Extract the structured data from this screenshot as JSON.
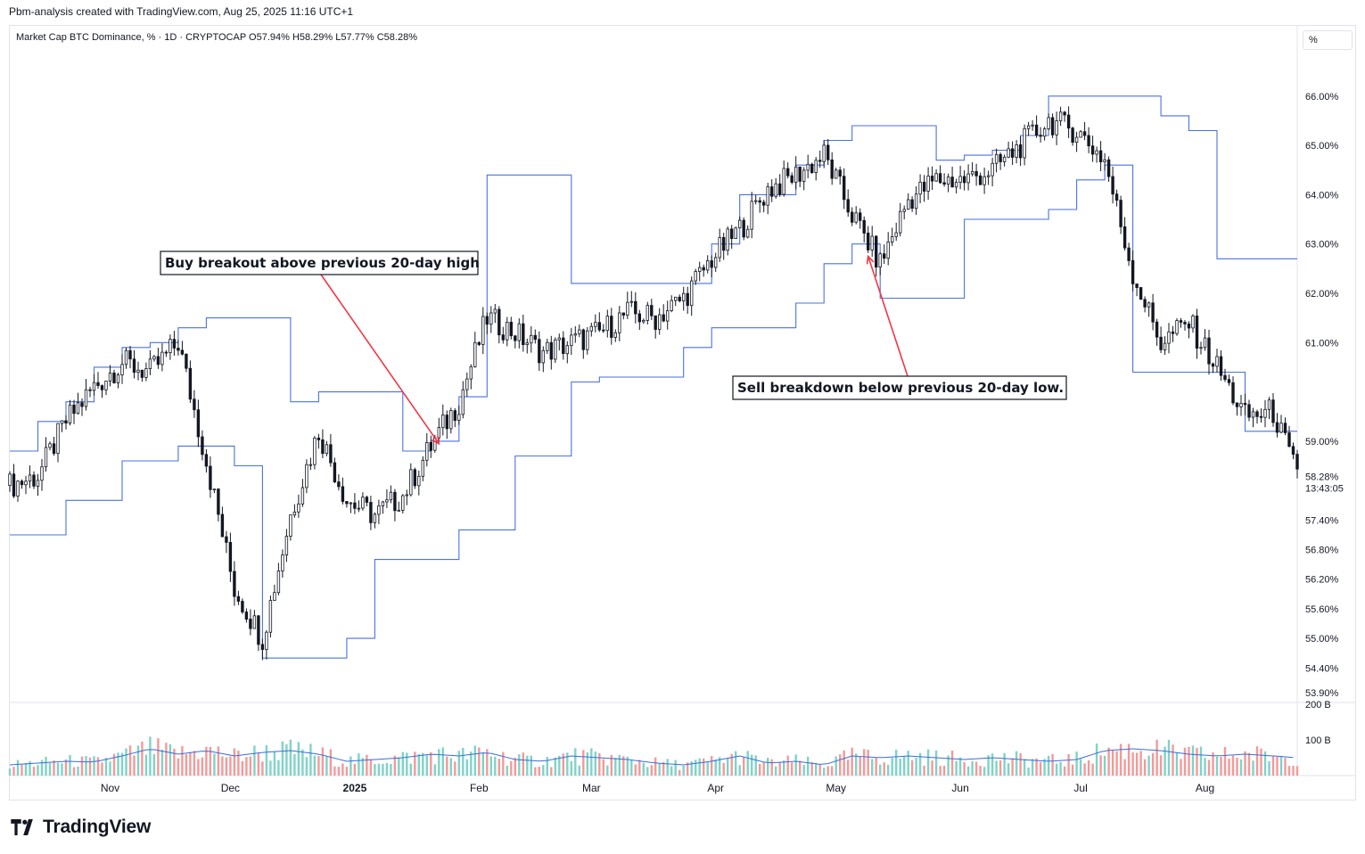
{
  "header": {
    "credit": "Pbm-analysis created with TradingView.com, Aug 25, 2025 11:16 UTC+1"
  },
  "legend": {
    "symbol": "Market Cap BTC Dominance, % · 1D · CRYPTOCAP",
    "ohlc": "O57.94% H58.29% L57.77% C58.28%"
  },
  "price_axis": {
    "unit_button": "%",
    "last_price_label": "58.28%",
    "countdown": "13:43:05"
  },
  "footer": {
    "brand": "TradingView"
  },
  "colors": {
    "channel": "#4a72e0",
    "candle": "#131722",
    "volume_up": "#7fd3c7",
    "volume_down": "#f29a9a",
    "volume_ma": "#3a6de0",
    "arrow": "#f23645"
  },
  "annotations": [
    {
      "text": "Buy breakout above previous 20-day high",
      "date": "2025-01-22",
      "value": 58.95
    },
    {
      "text": "Sell breakdown below previous 20-day low.",
      "date": "2025-05-09",
      "value": 62.75
    }
  ],
  "chart_data": {
    "type": "candlestick",
    "title": "Market Cap BTC Dominance, % · 1D · CRYPTOCAP",
    "y_unit": "%",
    "ylim": [
      53.7,
      66.9
    ],
    "y_ticks": [
      "66.00%",
      "65.00%",
      "64.00%",
      "63.00%",
      "62.00%",
      "61.00%",
      "59.00%",
      "57.40%",
      "56.80%",
      "56.20%",
      "55.60%",
      "55.00%",
      "54.40%",
      "53.90%"
    ],
    "x_ticks": [
      "Nov",
      "Dec",
      "2025",
      "Feb",
      "Mar",
      "Apr",
      "May",
      "Jun",
      "Jul",
      "Aug"
    ],
    "volume_ticks": [
      "200 B",
      "100 B"
    ],
    "volume_ylim": [
      0,
      200
    ],
    "indicator": "Donchian channel (20-day high / low)",
    "close_series": [
      [
        "2024-10-07",
        58.1
      ],
      [
        "2024-10-14",
        58.3
      ],
      [
        "2024-10-21",
        59.4
      ],
      [
        "2024-10-28",
        60.1
      ],
      [
        "2024-11-04",
        60.6
      ],
      [
        "2024-11-11",
        60.4
      ],
      [
        "2024-11-18",
        61.0
      ],
      [
        "2024-11-25",
        58.6
      ],
      [
        "2024-12-02",
        56.0
      ],
      [
        "2024-12-09",
        55.0
      ],
      [
        "2024-12-16",
        57.5
      ],
      [
        "2024-12-23",
        59.2
      ],
      [
        "2024-12-30",
        57.8
      ],
      [
        "2025-01-06",
        57.5
      ],
      [
        "2025-01-13",
        57.9
      ],
      [
        "2025-01-20",
        58.9
      ],
      [
        "2025-01-27",
        59.8
      ],
      [
        "2025-02-03",
        61.5
      ],
      [
        "2025-02-10",
        61.2
      ],
      [
        "2025-02-17",
        60.8
      ],
      [
        "2025-02-24",
        61.0
      ],
      [
        "2025-03-03",
        61.2
      ],
      [
        "2025-03-10",
        61.6
      ],
      [
        "2025-03-17",
        61.5
      ],
      [
        "2025-03-24",
        61.9
      ],
      [
        "2025-03-31",
        62.7
      ],
      [
        "2025-04-07",
        63.3
      ],
      [
        "2025-04-14",
        64.1
      ],
      [
        "2025-04-21",
        64.4
      ],
      [
        "2025-04-28",
        64.8
      ],
      [
        "2025-05-05",
        63.6
      ],
      [
        "2025-05-12",
        62.6
      ],
      [
        "2025-05-19",
        63.9
      ],
      [
        "2025-05-26",
        64.3
      ],
      [
        "2025-06-02",
        64.3
      ],
      [
        "2025-06-09",
        64.5
      ],
      [
        "2025-06-16",
        65.0
      ],
      [
        "2025-06-23",
        65.5
      ],
      [
        "2025-06-30",
        65.3
      ],
      [
        "2025-07-07",
        64.7
      ],
      [
        "2025-07-14",
        62.4
      ],
      [
        "2025-07-21",
        61.0
      ],
      [
        "2025-07-28",
        61.4
      ],
      [
        "2025-08-04",
        60.5
      ],
      [
        "2025-08-11",
        59.5
      ],
      [
        "2025-08-18",
        59.6
      ],
      [
        "2025-08-24",
        58.28
      ]
    ],
    "donchian_upper": [
      [
        "2024-10-07",
        58.8
      ],
      [
        "2024-10-14",
        59.4
      ],
      [
        "2024-10-21",
        59.8
      ],
      [
        "2024-10-28",
        60.5
      ],
      [
        "2024-11-04",
        60.9
      ],
      [
        "2024-11-11",
        61.0
      ],
      [
        "2024-11-18",
        61.3
      ],
      [
        "2024-11-25",
        61.5
      ],
      [
        "2024-12-02",
        61.5
      ],
      [
        "2024-12-09",
        61.5
      ],
      [
        "2024-12-16",
        59.8
      ],
      [
        "2024-12-23",
        60.0
      ],
      [
        "2024-12-30",
        60.0
      ],
      [
        "2025-01-06",
        60.0
      ],
      [
        "2025-01-13",
        58.8
      ],
      [
        "2025-01-20",
        59.0
      ],
      [
        "2025-01-27",
        59.9
      ],
      [
        "2025-02-03",
        64.4
      ],
      [
        "2025-02-10",
        64.4
      ],
      [
        "2025-02-17",
        64.4
      ],
      [
        "2025-02-24",
        62.2
      ],
      [
        "2025-03-03",
        62.2
      ],
      [
        "2025-03-10",
        62.2
      ],
      [
        "2025-03-17",
        62.2
      ],
      [
        "2025-03-24",
        62.2
      ],
      [
        "2025-03-31",
        63.0
      ],
      [
        "2025-04-07",
        64.0
      ],
      [
        "2025-04-14",
        64.0
      ],
      [
        "2025-04-21",
        64.6
      ],
      [
        "2025-04-28",
        65.1
      ],
      [
        "2025-05-05",
        65.4
      ],
      [
        "2025-05-12",
        65.4
      ],
      [
        "2025-05-19",
        65.4
      ],
      [
        "2025-05-26",
        64.7
      ],
      [
        "2025-06-02",
        64.8
      ],
      [
        "2025-06-09",
        64.9
      ],
      [
        "2025-06-16",
        65.2
      ],
      [
        "2025-06-23",
        66.0
      ],
      [
        "2025-06-30",
        66.0
      ],
      [
        "2025-07-07",
        66.0
      ],
      [
        "2025-07-14",
        66.0
      ],
      [
        "2025-07-21",
        65.6
      ],
      [
        "2025-07-28",
        65.3
      ],
      [
        "2025-08-04",
        62.7
      ],
      [
        "2025-08-11",
        62.7
      ],
      [
        "2025-08-18",
        62.7
      ],
      [
        "2025-08-24",
        62.7
      ]
    ],
    "donchian_lower": [
      [
        "2024-10-07",
        57.1
      ],
      [
        "2024-10-14",
        57.1
      ],
      [
        "2024-10-21",
        57.8
      ],
      [
        "2024-10-28",
        57.8
      ],
      [
        "2024-11-04",
        58.6
      ],
      [
        "2024-11-11",
        58.6
      ],
      [
        "2024-11-18",
        58.9
      ],
      [
        "2024-11-25",
        58.9
      ],
      [
        "2024-12-02",
        58.5
      ],
      [
        "2024-12-09",
        54.6
      ],
      [
        "2024-12-16",
        54.6
      ],
      [
        "2024-12-23",
        54.6
      ],
      [
        "2024-12-30",
        55.0
      ],
      [
        "2025-01-06",
        56.6
      ],
      [
        "2025-01-13",
        56.6
      ],
      [
        "2025-01-20",
        56.6
      ],
      [
        "2025-01-27",
        57.2
      ],
      [
        "2025-02-03",
        57.2
      ],
      [
        "2025-02-10",
        58.7
      ],
      [
        "2025-02-17",
        58.7
      ],
      [
        "2025-02-24",
        60.2
      ],
      [
        "2025-03-03",
        60.3
      ],
      [
        "2025-03-10",
        60.3
      ],
      [
        "2025-03-17",
        60.3
      ],
      [
        "2025-03-24",
        60.9
      ],
      [
        "2025-03-31",
        61.3
      ],
      [
        "2025-04-07",
        61.3
      ],
      [
        "2025-04-14",
        61.3
      ],
      [
        "2025-04-21",
        61.8
      ],
      [
        "2025-04-28",
        62.6
      ],
      [
        "2025-05-05",
        63.0
      ],
      [
        "2025-05-12",
        61.9
      ],
      [
        "2025-05-19",
        61.9
      ],
      [
        "2025-05-26",
        61.9
      ],
      [
        "2025-06-02",
        63.5
      ],
      [
        "2025-06-09",
        63.5
      ],
      [
        "2025-06-16",
        63.5
      ],
      [
        "2025-06-23",
        63.7
      ],
      [
        "2025-06-30",
        64.3
      ],
      [
        "2025-07-07",
        64.6
      ],
      [
        "2025-07-14",
        60.4
      ],
      [
        "2025-07-21",
        60.4
      ],
      [
        "2025-07-28",
        60.4
      ],
      [
        "2025-08-04",
        60.4
      ],
      [
        "2025-08-11",
        59.2
      ],
      [
        "2025-08-18",
        59.2
      ],
      [
        "2025-08-24",
        59.2
      ]
    ],
    "volume_series": [
      [
        "2024-10-07",
        30
      ],
      [
        "2024-10-14",
        35
      ],
      [
        "2024-10-21",
        40
      ],
      [
        "2024-10-28",
        38
      ],
      [
        "2024-11-04",
        55
      ],
      [
        "2024-11-11",
        75
      ],
      [
        "2024-11-18",
        60
      ],
      [
        "2024-11-25",
        70
      ],
      [
        "2024-12-02",
        55
      ],
      [
        "2024-12-09",
        65
      ],
      [
        "2024-12-16",
        70
      ],
      [
        "2024-12-23",
        60
      ],
      [
        "2024-12-30",
        40
      ],
      [
        "2025-01-06",
        45
      ],
      [
        "2025-01-13",
        50
      ],
      [
        "2025-01-20",
        60
      ],
      [
        "2025-01-27",
        55
      ],
      [
        "2025-02-03",
        65
      ],
      [
        "2025-02-10",
        45
      ],
      [
        "2025-02-17",
        40
      ],
      [
        "2025-02-24",
        55
      ],
      [
        "2025-03-03",
        50
      ],
      [
        "2025-03-10",
        45
      ],
      [
        "2025-03-17",
        35
      ],
      [
        "2025-03-24",
        30
      ],
      [
        "2025-03-31",
        40
      ],
      [
        "2025-04-07",
        55
      ],
      [
        "2025-04-14",
        35
      ],
      [
        "2025-04-21",
        40
      ],
      [
        "2025-04-28",
        30
      ],
      [
        "2025-05-05",
        55
      ],
      [
        "2025-05-12",
        50
      ],
      [
        "2025-05-19",
        55
      ],
      [
        "2025-05-26",
        50
      ],
      [
        "2025-06-02",
        45
      ],
      [
        "2025-06-09",
        50
      ],
      [
        "2025-06-16",
        45
      ],
      [
        "2025-06-23",
        40
      ],
      [
        "2025-06-30",
        45
      ],
      [
        "2025-07-07",
        70
      ],
      [
        "2025-07-14",
        75
      ],
      [
        "2025-07-21",
        70
      ],
      [
        "2025-07-28",
        60
      ],
      [
        "2025-08-04",
        55
      ],
      [
        "2025-08-11",
        60
      ],
      [
        "2025-08-18",
        55
      ],
      [
        "2025-08-24",
        50
      ]
    ]
  }
}
